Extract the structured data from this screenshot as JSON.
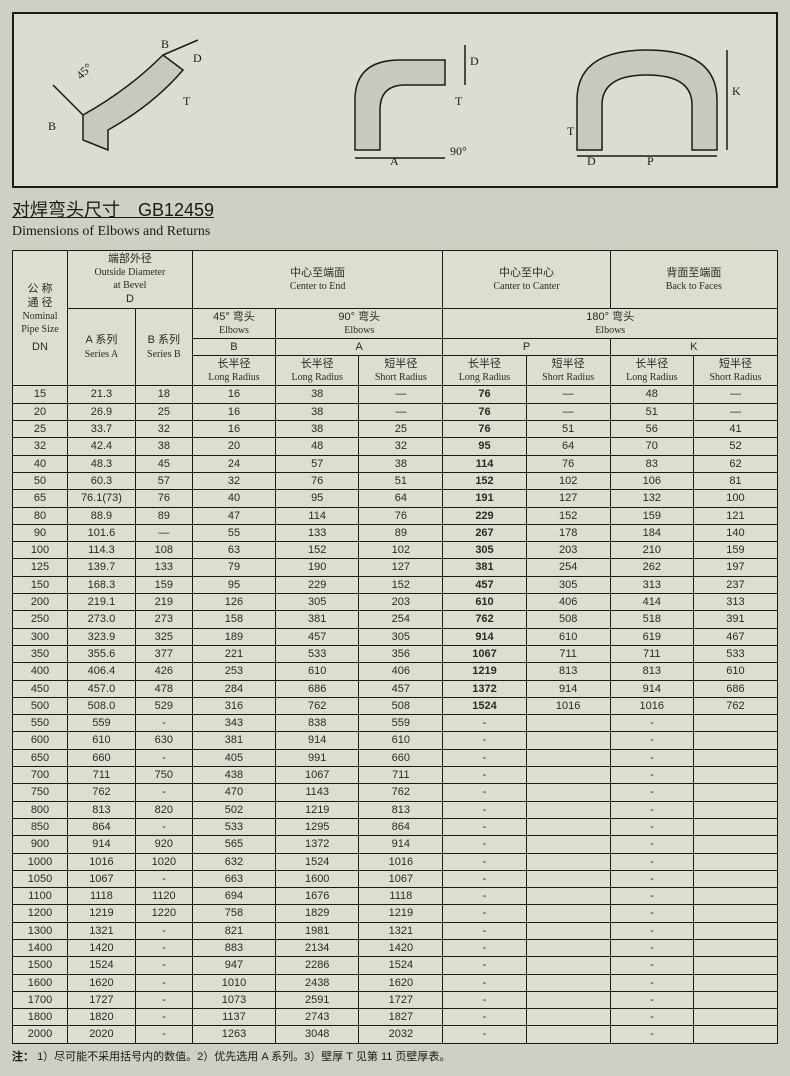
{
  "title_cn": "对焊弯头尺寸　GB12459",
  "title_en": "Dimensions of Elbows and Returns",
  "head": {
    "dn_cn": "公 称\n通 径",
    "dn_en1": "Nominal",
    "dn_en2": "Pipe Size",
    "dn": "DN",
    "od_cn": "端部外径",
    "od_en": "Outside Diameter",
    "od_en2": "at Bevel",
    "d": "D",
    "seriesA_cn": "A 系列",
    "seriesA_en": "Series A",
    "seriesB_cn": "B 系列",
    "seriesB_en": "Series B",
    "cte_cn": "中心至端面",
    "cte_en": "Center to End",
    "e45_cn": "45° 弯头",
    "e45_en": "Elbows",
    "b": "B",
    "e90_cn": "90° 弯头",
    "e90_en": "Elbows",
    "a": "A",
    "ctc_cn": "中心至中心",
    "ctc_en": "Canter to Canter",
    "btf_cn": "背面至端面",
    "btf_en": "Back to Faces",
    "e180_cn": "180° 弯头",
    "e180_en": "Elbows",
    "p": "P",
    "k": "K",
    "lr_cn": "长半径",
    "lr_en": "Long Radius",
    "sr_cn": "短半径",
    "sr_en": "Short Radius"
  },
  "rows": [
    [
      "15",
      "21.3",
      "18",
      "16",
      "38",
      "—",
      "76",
      "—",
      "48",
      "—"
    ],
    [
      "20",
      "26.9",
      "25",
      "16",
      "38",
      "—",
      "76",
      "—",
      "51",
      "—"
    ],
    [
      "25",
      "33.7",
      "32",
      "16",
      "38",
      "25",
      "76",
      "51",
      "56",
      "41"
    ],
    [
      "32",
      "42.4",
      "38",
      "20",
      "48",
      "32",
      "95",
      "64",
      "70",
      "52"
    ],
    [
      "40",
      "48.3",
      "45",
      "24",
      "57",
      "38",
      "114",
      "76",
      "83",
      "62"
    ],
    [
      "50",
      "60.3",
      "57",
      "32",
      "76",
      "51",
      "152",
      "102",
      "106",
      "81"
    ],
    [
      "65",
      "76.1(73)",
      "76",
      "40",
      "95",
      "64",
      "191",
      "127",
      "132",
      "100"
    ],
    [
      "80",
      "88.9",
      "89",
      "47",
      "114",
      "76",
      "229",
      "152",
      "159",
      "121"
    ],
    [
      "90",
      "101.6",
      "—",
      "55",
      "133",
      "89",
      "267",
      "178",
      "184",
      "140"
    ],
    [
      "100",
      "114.3",
      "108",
      "63",
      "152",
      "102",
      "305",
      "203",
      "210",
      "159"
    ],
    [
      "125",
      "139.7",
      "133",
      "79",
      "190",
      "127",
      "381",
      "254",
      "262",
      "197"
    ],
    [
      "150",
      "168.3",
      "159",
      "95",
      "229",
      "152",
      "457",
      "305",
      "313",
      "237"
    ],
    [
      "200",
      "219.1",
      "219",
      "126",
      "305",
      "203",
      "610",
      "406",
      "414",
      "313"
    ],
    [
      "250",
      "273.0",
      "273",
      "158",
      "381",
      "254",
      "762",
      "508",
      "518",
      "391"
    ],
    [
      "300",
      "323.9",
      "325",
      "189",
      "457",
      "305",
      "914",
      "610",
      "619",
      "467"
    ],
    [
      "350",
      "355.6",
      "377",
      "221",
      "533",
      "356",
      "1067",
      "711",
      "711",
      "533"
    ],
    [
      "400",
      "406.4",
      "426",
      "253",
      "610",
      "406",
      "1219",
      "813",
      "813",
      "610"
    ],
    [
      "450",
      "457.0",
      "478",
      "284",
      "686",
      "457",
      "1372",
      "914",
      "914",
      "686"
    ],
    [
      "500",
      "508.0",
      "529",
      "316",
      "762",
      "508",
      "1524",
      "1016",
      "1016",
      "762"
    ],
    [
      "550",
      "559",
      "-",
      "343",
      "838",
      "559",
      "-",
      "",
      "-",
      ""
    ],
    [
      "600",
      "610",
      "630",
      "381",
      "914",
      "610",
      "-",
      "",
      "-",
      ""
    ],
    [
      "650",
      "660",
      "-",
      "405",
      "991",
      "660",
      "-",
      "",
      "-",
      ""
    ],
    [
      "700",
      "711",
      "750",
      "438",
      "1067",
      "711",
      "-",
      "",
      "-",
      ""
    ],
    [
      "750",
      "762",
      "-",
      "470",
      "1143",
      "762",
      "-",
      "",
      "-",
      ""
    ],
    [
      "800",
      "813",
      "820",
      "502",
      "1219",
      "813",
      "-",
      "",
      "-",
      ""
    ],
    [
      "850",
      "864",
      "-",
      "533",
      "1295",
      "864",
      "-",
      "",
      "-",
      ""
    ],
    [
      "900",
      "914",
      "920",
      "565",
      "1372",
      "914",
      "-",
      "",
      "-",
      ""
    ],
    [
      "1000",
      "1016",
      "1020",
      "632",
      "1524",
      "1016",
      "-",
      "",
      "-",
      ""
    ],
    [
      "1050",
      "1067",
      "-",
      "663",
      "1600",
      "1067",
      "-",
      "",
      "-",
      ""
    ],
    [
      "1100",
      "1118",
      "1120",
      "694",
      "1676",
      "1118",
      "-",
      "",
      "-",
      ""
    ],
    [
      "1200",
      "1219",
      "1220",
      "758",
      "1829",
      "1219",
      "-",
      "",
      "-",
      ""
    ],
    [
      "1300",
      "1321",
      "-",
      "821",
      "1981",
      "1321",
      "-",
      "",
      "-",
      ""
    ],
    [
      "1400",
      "1420",
      "-",
      "883",
      "2134",
      "1420",
      "-",
      "",
      "-",
      ""
    ],
    [
      "1500",
      "1524",
      "-",
      "947",
      "2286",
      "1524",
      "-",
      "",
      "-",
      ""
    ],
    [
      "1600",
      "1620",
      "-",
      "1010",
      "2438",
      "1620",
      "-",
      "",
      "-",
      ""
    ],
    [
      "1700",
      "1727",
      "-",
      "1073",
      "2591",
      "1727",
      "-",
      "",
      "-",
      ""
    ],
    [
      "1800",
      "1820",
      "-",
      "1137",
      "2743",
      "1827",
      "-",
      "",
      "-",
      ""
    ],
    [
      "2000",
      "2020",
      "-",
      "1263",
      "3048",
      "2032",
      "-",
      "",
      "-",
      ""
    ]
  ],
  "foot_label": "注：",
  "foot_text": "1）尽可能不采用括号内的数值。2）优先选用 A 系列。3）壁厚 T 见第 11 页壁厚表。"
}
